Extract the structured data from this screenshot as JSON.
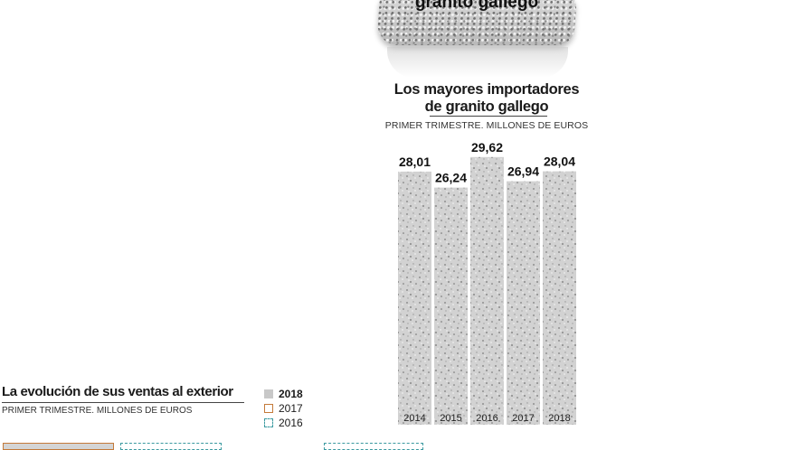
{
  "header": {
    "rock_title": "granito gallego"
  },
  "chart_data": {
    "type": "bar",
    "title": "Los mayores importadores de granito gallego",
    "title_lines": [
      "Los mayores importadores",
      "de granito gallego"
    ],
    "subtitle": "PRIMER TRIMESTRE. MILLONES DE EUROS",
    "categories": [
      "2014",
      "2015",
      "2016",
      "2017",
      "2018"
    ],
    "values": [
      28.01,
      26.24,
      29.62,
      26.94,
      28.04
    ],
    "value_labels": [
      "28,01",
      "26,24",
      "29,62",
      "26,94",
      "28,04"
    ],
    "xlabel": "",
    "ylabel": "",
    "grid": false,
    "bar_color": "#cfcfcf"
  },
  "secondary": {
    "title": "La evolución de sus ventas al exterior",
    "subtitle": "PRIMER TRIMESTRE. MILLONES DE EUROS",
    "legend": [
      {
        "label": "2018",
        "color": "#c8c8c8"
      },
      {
        "label": "2017",
        "color": "#c47a3a"
      },
      {
        "label": "2016",
        "color": "#3b9aa0"
      }
    ]
  }
}
